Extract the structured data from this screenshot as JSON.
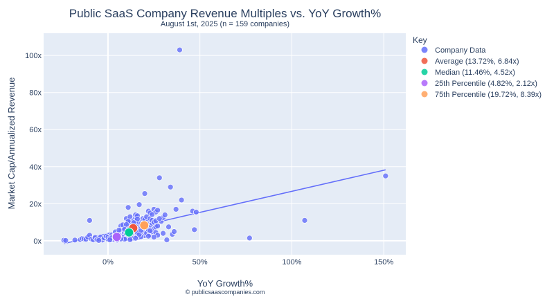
{
  "chart_data": {
    "type": "scatter",
    "title": "Public SaaS Company Revenue Multiples vs. YoY Growth%",
    "subtitle": "August 1st, 2025 (n = 159 companies)",
    "xlabel": "YoY Growth%",
    "ylabel": "Market Cap/Annualized Revenue",
    "credit": "© publicsaascompanies.com",
    "xlim": [
      -35,
      162
    ],
    "ylim": [
      -7.5,
      112
    ],
    "x_ticks": [
      0,
      50,
      100,
      150
    ],
    "x_tick_labels": [
      "0%",
      "50%",
      "100%",
      "150%"
    ],
    "y_ticks": [
      0,
      20,
      40,
      60,
      80,
      100
    ],
    "y_tick_labels": [
      "0x",
      "20x",
      "40x",
      "60x",
      "80x",
      "100x"
    ],
    "grid": true,
    "legend_title": "Key",
    "legend_position": "right",
    "trendline": {
      "x": [
        -24,
        151
      ],
      "y": [
        -1.5,
        38.3
      ],
      "color": "#636efa"
    },
    "colors": {
      "company": "#636efa",
      "average": "#ef553b",
      "median": "#00cc96",
      "p25": "#ab63fa",
      "p75": "#ffa15a",
      "plot_bg": "#e5ecf6"
    },
    "series": [
      {
        "name": "Company Data",
        "legend_label": "Company Data",
        "color": "#636efa",
        "points": [
          [
            -24,
            0.3
          ],
          [
            -23,
            0.2
          ],
          [
            -15,
            0.6
          ],
          [
            -14,
            1.2
          ],
          [
            -13,
            1.0
          ],
          [
            -12,
            0.8
          ],
          [
            -11,
            2.0
          ],
          [
            -10,
            3.0
          ],
          [
            -10,
            11.0
          ],
          [
            -9,
            1.0
          ],
          [
            -8,
            0.5
          ],
          [
            -7,
            1.8
          ],
          [
            -6,
            0.7
          ],
          [
            -5,
            1.2
          ],
          [
            -4,
            2.0
          ],
          [
            -3,
            0.4
          ],
          [
            -2,
            1.5
          ],
          [
            -1,
            2.5
          ],
          [
            0,
            0.8
          ],
          [
            0,
            2.0
          ],
          [
            1,
            1.3
          ],
          [
            2,
            3.0
          ],
          [
            2,
            0.6
          ],
          [
            3,
            2.2
          ],
          [
            3,
            1.0
          ],
          [
            4,
            3.5
          ],
          [
            4,
            4.8
          ],
          [
            5,
            1.5
          ],
          [
            5,
            2.8
          ],
          [
            6,
            0.9
          ],
          [
            6,
            4.0
          ],
          [
            7,
            2.3
          ],
          [
            7,
            5.5
          ],
          [
            7,
            8.0
          ],
          [
            8,
            1.8
          ],
          [
            8,
            3.2
          ],
          [
            8,
            6.0
          ],
          [
            9,
            2.5
          ],
          [
            9,
            4.5
          ],
          [
            9,
            7.0
          ],
          [
            10,
            1.2
          ],
          [
            10,
            3.8
          ],
          [
            10,
            5.2
          ],
          [
            10,
            12.0
          ],
          [
            11,
            2.8
          ],
          [
            11,
            6.5
          ],
          [
            11,
            9.0
          ],
          [
            11,
            18.0
          ],
          [
            12,
            1.5
          ],
          [
            12,
            4.2
          ],
          [
            12,
            7.8
          ],
          [
            12,
            10.5
          ],
          [
            12,
            13.0
          ],
          [
            13,
            3.0
          ],
          [
            13,
            5.8
          ],
          [
            13,
            8.5
          ],
          [
            14,
            2.0
          ],
          [
            14,
            4.8
          ],
          [
            14,
            6.2
          ],
          [
            14,
            11.0
          ],
          [
            15,
            3.5
          ],
          [
            15,
            7.0
          ],
          [
            15,
            9.5
          ],
          [
            15,
            12.5
          ],
          [
            15,
            14.0
          ],
          [
            16,
            2.5
          ],
          [
            16,
            5.0
          ],
          [
            16,
            8.0
          ],
          [
            16,
            13.5
          ],
          [
            17,
            1.8
          ],
          [
            17,
            6.0
          ],
          [
            17,
            10.0
          ],
          [
            17,
            19.5
          ],
          [
            18,
            3.8
          ],
          [
            18,
            7.5
          ],
          [
            18,
            9.0
          ],
          [
            19,
            4.5
          ],
          [
            19,
            8.2
          ],
          [
            19,
            12.0
          ],
          [
            20,
            2.8
          ],
          [
            20,
            5.5
          ],
          [
            20,
            11.5
          ],
          [
            20,
            25.5
          ],
          [
            21,
            4.0
          ],
          [
            21,
            7.0
          ],
          [
            21,
            13.0
          ],
          [
            22,
            6.0
          ],
          [
            22,
            10.5
          ],
          [
            22,
            16.0
          ],
          [
            23,
            3.2
          ],
          [
            23,
            8.5
          ],
          [
            23,
            12.0
          ],
          [
            23,
            15.0
          ],
          [
            24,
            5.0
          ],
          [
            24,
            9.5
          ],
          [
            24,
            11.0
          ],
          [
            25,
            6.5
          ],
          [
            25,
            10.0
          ],
          [
            25,
            17.0
          ],
          [
            26,
            4.5
          ],
          [
            26,
            7.5
          ],
          [
            26,
            15.5
          ],
          [
            27,
            8.0
          ],
          [
            27,
            16.5
          ],
          [
            28,
            34.0
          ],
          [
            29,
            10.5
          ],
          [
            30,
            4.0
          ],
          [
            30,
            12.5
          ],
          [
            31,
            14.0
          ],
          [
            32,
            0.5
          ],
          [
            33,
            7.5
          ],
          [
            34,
            29.0
          ],
          [
            35,
            3.5
          ],
          [
            36,
            5.0
          ],
          [
            37,
            17.0
          ],
          [
            39,
            103.0
          ],
          [
            40,
            22.0
          ],
          [
            46,
            16.0
          ],
          [
            47,
            6.0
          ],
          [
            48,
            15.5
          ],
          [
            77,
            1.5
          ],
          [
            107,
            11.0
          ],
          [
            151,
            35.0
          ],
          [
            5,
            0.4
          ],
          [
            13,
            1.2
          ],
          [
            18,
            2.2
          ],
          [
            22,
            2.5
          ],
          [
            27,
            3.0
          ],
          [
            3,
            0.9
          ],
          [
            9,
            0.9
          ],
          [
            -5,
            0.2
          ],
          [
            -18,
            0.4
          ],
          [
            11,
            10.5
          ],
          [
            14,
            9.8
          ],
          [
            19,
            6.8
          ],
          [
            21,
            9.2
          ],
          [
            24,
            14.2
          ],
          [
            6,
            3.2
          ],
          [
            16,
            4.4
          ],
          [
            13,
            2.6
          ],
          [
            8,
            8.6
          ],
          [
            4,
            2.0
          ],
          [
            12,
            0.6
          ],
          [
            17,
            3.4
          ],
          [
            2,
            1.6
          ],
          [
            10,
            8.8
          ],
          [
            15,
            1.4
          ],
          [
            7,
            1.0
          ],
          [
            20,
            7.4
          ],
          [
            18,
            5.6
          ],
          [
            9,
            6.2
          ],
          [
            26,
            10.8
          ],
          [
            23,
            5.4
          ],
          [
            28,
            12.0
          ],
          [
            1,
            0.5
          ],
          [
            6,
            5.8
          ],
          [
            13,
            4.0
          ],
          [
            25,
            2.0
          ],
          [
            16,
            11.8
          ]
        ]
      },
      {
        "name": "Average",
        "legend_label": "Average (13.72%, 6.84x)",
        "color": "#ef553b",
        "points": [
          [
            13.72,
            6.84
          ]
        ]
      },
      {
        "name": "Median",
        "legend_label": "Median (11.46%, 4.52x)",
        "color": "#00cc96",
        "points": [
          [
            11.46,
            4.52
          ]
        ]
      },
      {
        "name": "25th Percentile",
        "legend_label": "25th Percentile (4.82%, 2.12x)",
        "color": "#ab63fa",
        "points": [
          [
            4.82,
            2.12
          ]
        ]
      },
      {
        "name": "75th Percentile",
        "legend_label": "75th Percentile (19.72%, 8.39x)",
        "color": "#ffa15a",
        "points": [
          [
            19.72,
            8.39
          ]
        ]
      }
    ]
  }
}
